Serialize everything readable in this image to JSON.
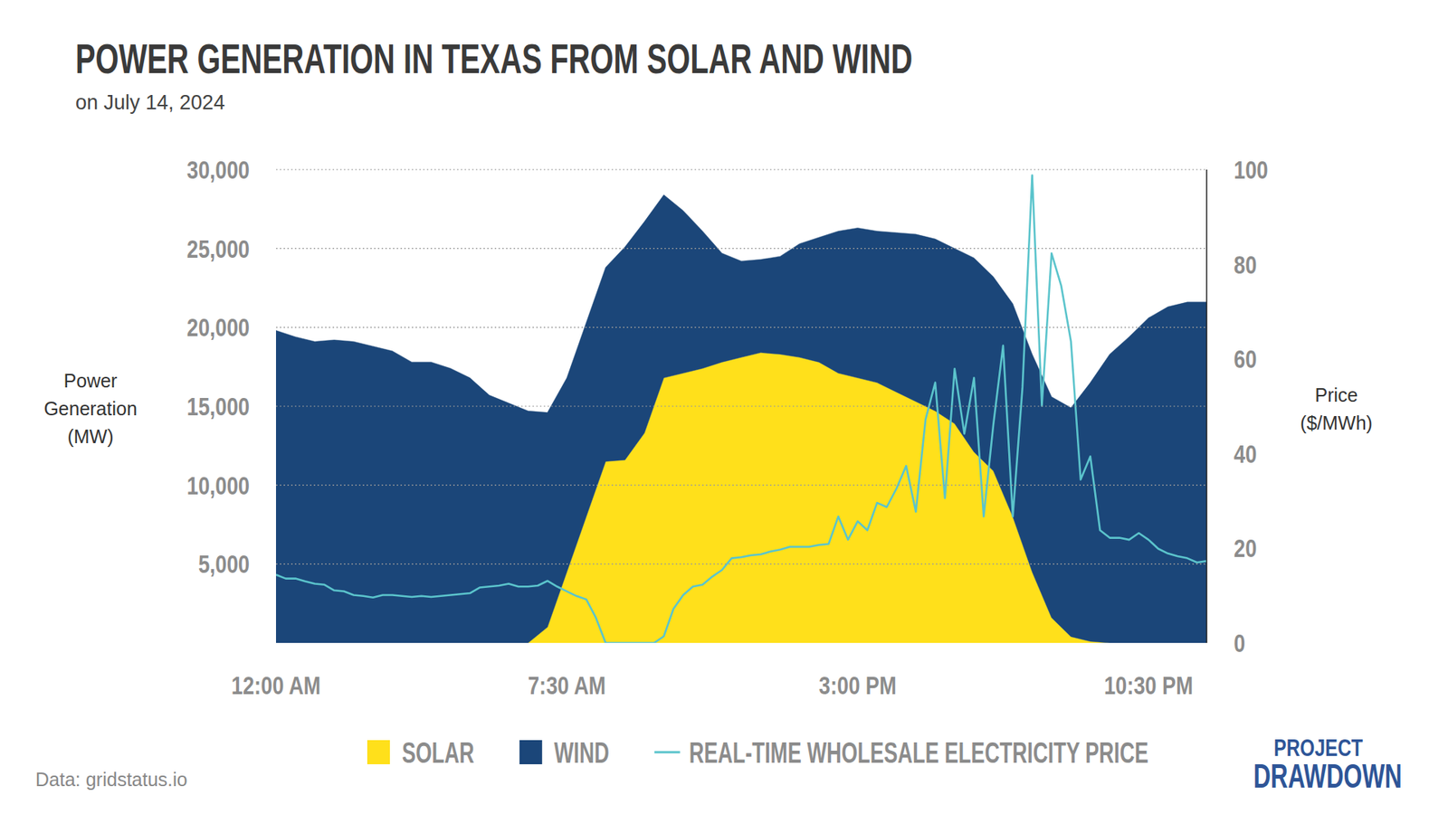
{
  "chart_data": {
    "type": "area",
    "title": "Power Generation in Texas from Solar and Wind",
    "subtitle": "on July 14, 2024",
    "y_label": "Power Generation (MW)",
    "y2_label": "Price ($/MWh)",
    "source": "Data: gridstatus.io",
    "logo": [
      "PROJECT",
      "DRAWDOWN"
    ],
    "stacked": true,
    "grid": true,
    "legend": "bottom",
    "x": [
      0,
      0.5,
      1,
      1.5,
      2,
      2.5,
      3,
      3.5,
      4,
      4.5,
      5,
      5.5,
      6,
      6.5,
      7,
      7.5,
      8,
      8.5,
      9,
      9.5,
      10,
      10.5,
      11,
      11.5,
      12,
      12.5,
      13,
      13.5,
      14,
      14.5,
      15,
      15.5,
      16,
      16.5,
      17,
      17.5,
      18,
      18.5,
      19,
      19.5,
      20,
      20.5,
      21,
      21.5,
      22,
      22.5,
      23,
      23.5,
      24
    ],
    "xlim": [
      0,
      24
    ],
    "xticks": [
      {
        "value": 0,
        "label": "12:00 AM"
      },
      {
        "value": 7.5,
        "label": "7:30 AM"
      },
      {
        "value": 15,
        "label": "3:00 PM"
      },
      {
        "value": 22.5,
        "label": "10:30 PM"
      }
    ],
    "ylim": [
      0,
      30000
    ],
    "yticks": [
      {
        "value": 5000,
        "label": "5,000"
      },
      {
        "value": 10000,
        "label": "10,000"
      },
      {
        "value": 15000,
        "label": "15,000"
      },
      {
        "value": 20000,
        "label": "20,000"
      },
      {
        "value": 25000,
        "label": "25,000"
      },
      {
        "value": 30000,
        "label": "30,000"
      }
    ],
    "y2lim": [
      0,
      100
    ],
    "y2ticks": [
      0,
      20,
      40,
      60,
      80,
      100
    ],
    "series": [
      {
        "name": "SOLAR",
        "type": "area",
        "color": "#FFE01B",
        "values": [
          0,
          0,
          0,
          0,
          0,
          0,
          0,
          0,
          0,
          0,
          0,
          0,
          0,
          0,
          1000,
          4500,
          8000,
          11500,
          11600,
          13300,
          16800,
          17100,
          17400,
          17800,
          18100,
          18400,
          18300,
          18100,
          17800,
          17100,
          16800,
          16500,
          15900,
          15300,
          14700,
          13900,
          12100,
          10900,
          8000,
          4500,
          1600,
          400,
          100,
          0,
          0,
          0,
          0,
          0,
          0
        ]
      },
      {
        "name": "WIND",
        "type": "area",
        "color": "#1B4679",
        "values": [
          19800,
          19400,
          19100,
          19200,
          19100,
          18800,
          18500,
          17800,
          17800,
          17400,
          16800,
          15700,
          15200,
          14700,
          13600,
          12300,
          12300,
          12300,
          13500,
          13400,
          11600,
          10300,
          8700,
          6900,
          6100,
          5900,
          6200,
          7200,
          7900,
          9000,
          9500,
          9600,
          10100,
          10600,
          10900,
          11100,
          12300,
          12300,
          13500,
          13800,
          14000,
          14500,
          16400,
          18300,
          19400,
          20600,
          21300,
          21600,
          21600
        ]
      },
      {
        "name": "REAL-TIME WHOLESALE ELECTRICITY PRICE",
        "type": "line",
        "axis": "y2",
        "color": "#5BC4CC",
        "x": [
          0,
          0.25,
          0.5,
          0.75,
          1,
          1.25,
          1.5,
          1.75,
          2,
          2.25,
          2.5,
          2.75,
          3,
          3.25,
          3.5,
          3.75,
          4,
          4.25,
          4.5,
          4.75,
          5,
          5.25,
          5.5,
          5.75,
          6,
          6.25,
          6.5,
          6.75,
          7,
          7.25,
          7.5,
          7.75,
          8,
          8.25,
          8.5,
          8.75,
          9,
          9.25,
          9.5,
          9.75,
          10,
          10.25,
          10.5,
          10.75,
          11,
          11.25,
          11.5,
          11.75,
          12,
          12.25,
          12.5,
          12.75,
          13,
          13.25,
          13.5,
          13.75,
          14,
          14.25,
          14.5,
          14.75,
          15,
          15.25,
          15.5,
          15.75,
          16,
          16.25,
          16.5,
          16.75,
          17,
          17.25,
          17.5,
          17.75,
          18,
          18.25,
          18.5,
          18.75,
          19,
          19.25,
          19.5,
          19.75,
          20,
          20.25,
          20.5,
          20.75,
          21,
          21.25,
          21.5,
          21.75,
          22,
          22.25,
          22.5,
          22.75,
          23,
          23.25,
          23.5,
          23.75,
          24
        ],
        "values": [
          14.4,
          13.6,
          13.6,
          13,
          12.5,
          12.3,
          11.1,
          10.9,
          10.1,
          9.9,
          9.6,
          10.1,
          10.1,
          9.9,
          9.7,
          9.9,
          9.7,
          9.9,
          10.1,
          10.3,
          10.5,
          11.7,
          11.9,
          12.1,
          12.5,
          11.9,
          11.9,
          12.1,
          13.1,
          11.9,
          10.9,
          9.9,
          9.2,
          5.3,
          0,
          0,
          0,
          0,
          0,
          0,
          1.4,
          7.2,
          10.1,
          11.9,
          12.3,
          14,
          15.4,
          17.9,
          18.1,
          18.5,
          18.7,
          19.3,
          19.7,
          20.3,
          20.3,
          20.3,
          20.7,
          20.9,
          26.7,
          21.8,
          25.7,
          23.8,
          29.6,
          28.7,
          32.6,
          37.4,
          27.7,
          47.2,
          55,
          30.6,
          57.9,
          44.2,
          56,
          26.7,
          46.2,
          62.8,
          26.7,
          54,
          98.8,
          50.1,
          82.3,
          75.4,
          63.7,
          34.5,
          39.4,
          23.8,
          22.2,
          22.2,
          21.8,
          23.2,
          21.8,
          19.9,
          18.9,
          18.3,
          17.9,
          17,
          17.3
        ]
      }
    ]
  }
}
